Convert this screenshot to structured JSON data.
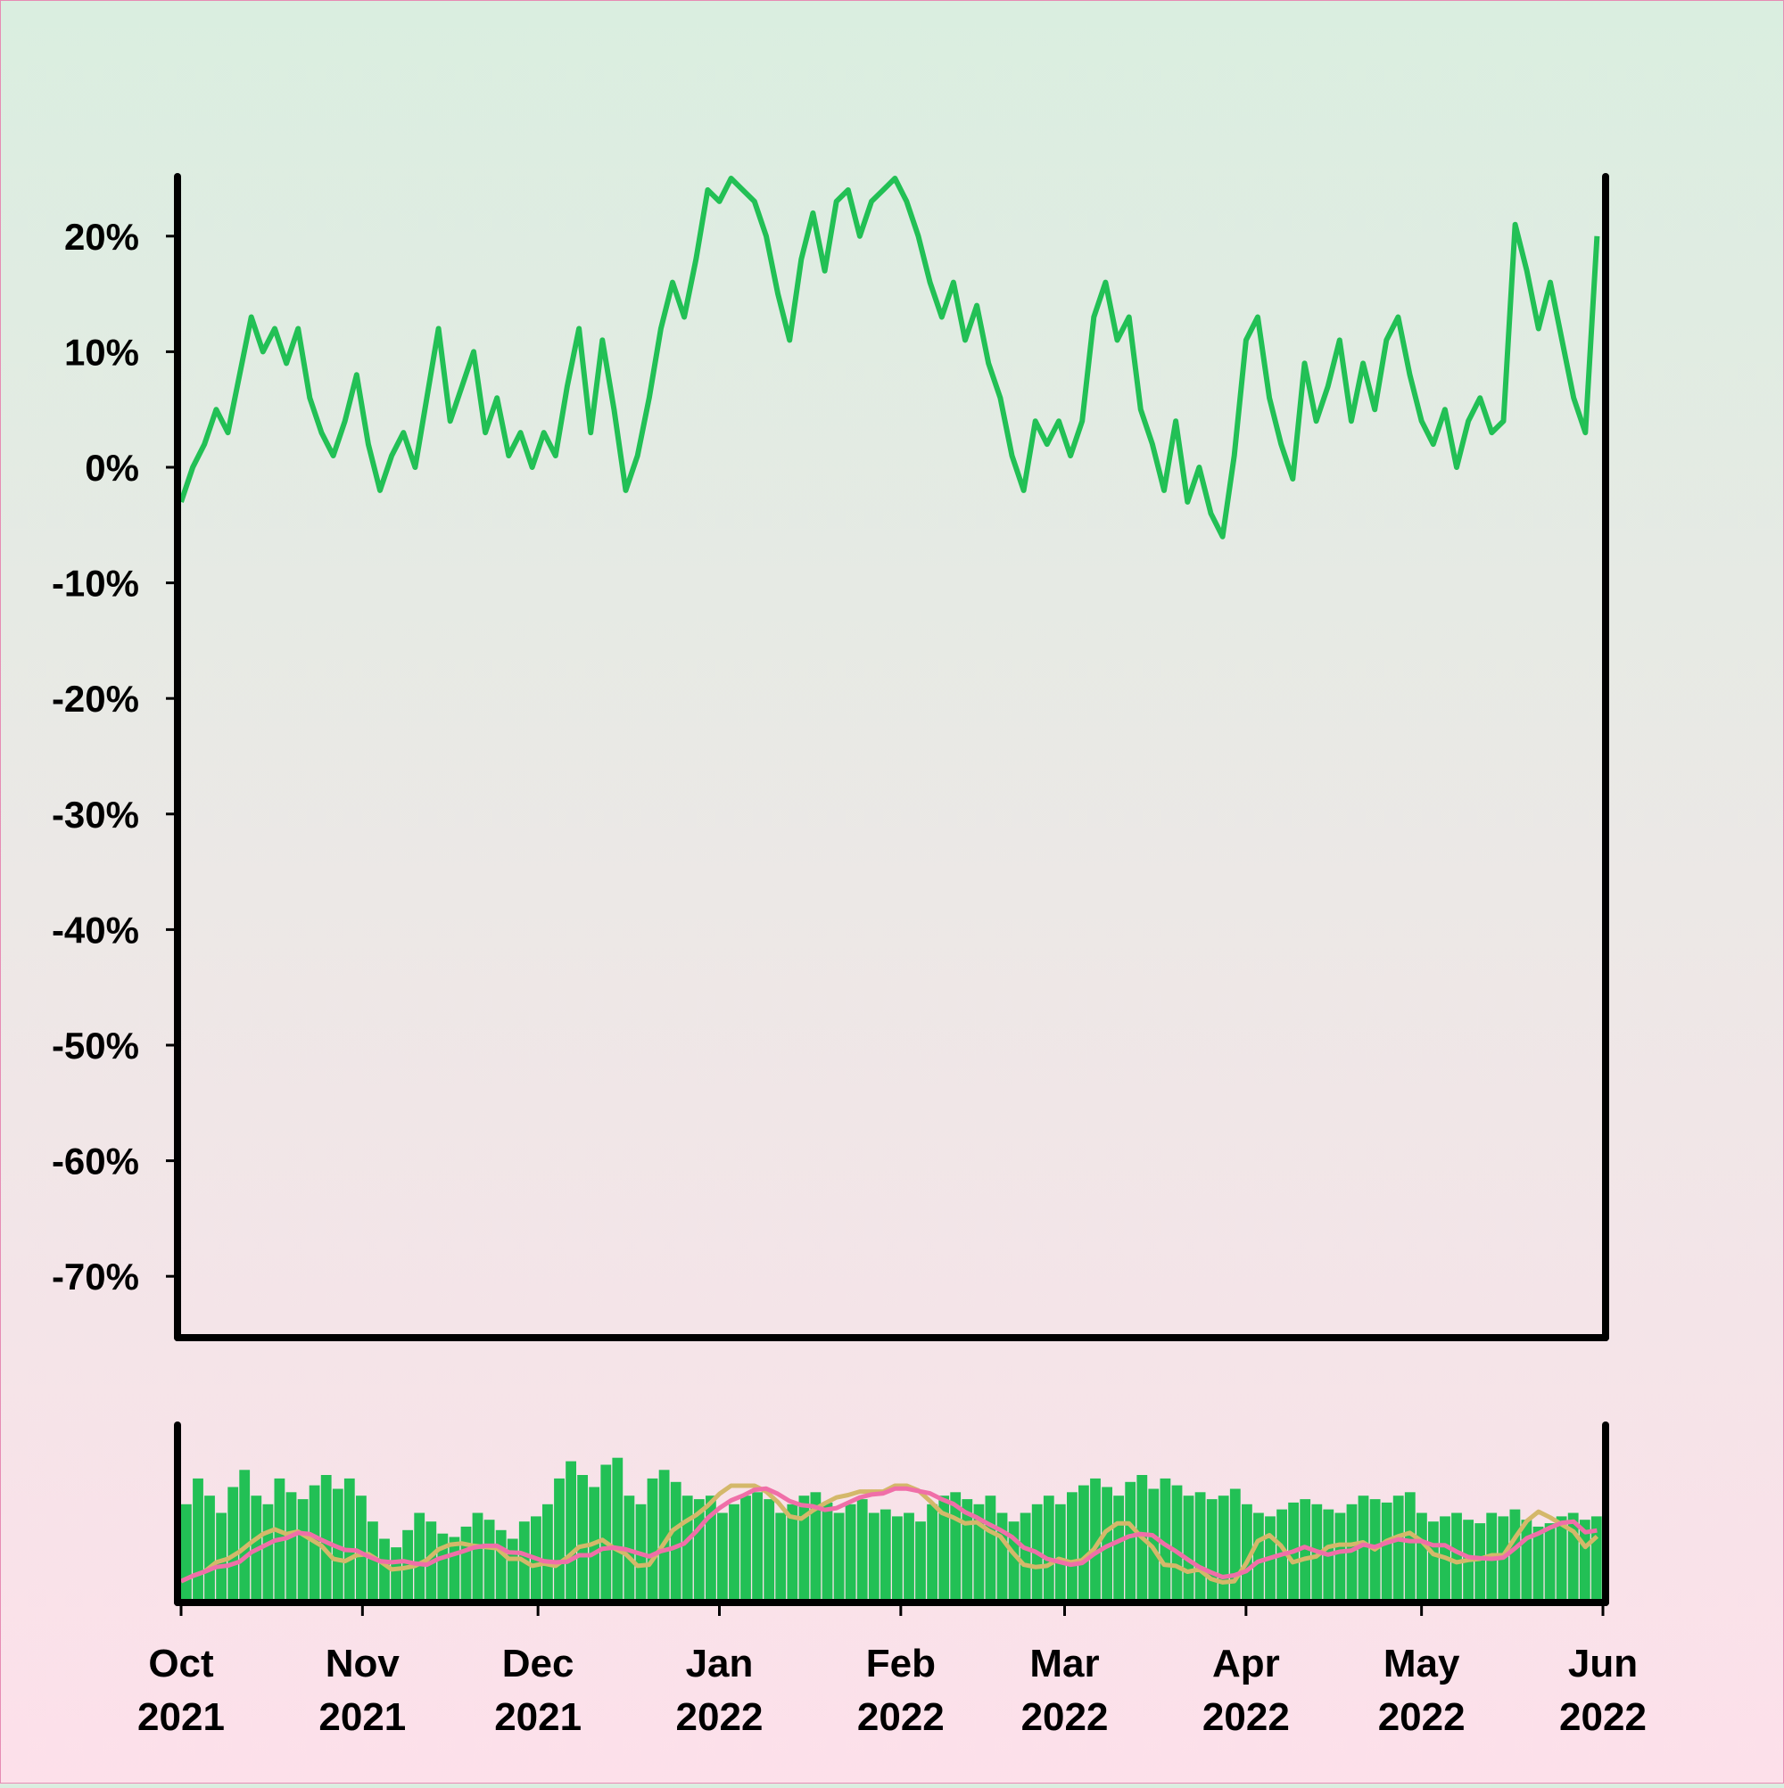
{
  "chart_data": [
    {
      "type": "line",
      "panel": "main",
      "title": "",
      "xlabel": "",
      "ylabel": "",
      "y_unit": "%",
      "ylim": [
        -75,
        25
      ],
      "xlim": [
        "2021-10-01",
        "2022-06-01"
      ],
      "y_ticks": [
        20,
        10,
        0,
        -10,
        -20,
        -30,
        -40,
        -50,
        -60,
        -70
      ],
      "y_tick_labels": [
        "20%",
        "10%",
        "0%",
        "-10%",
        "-20%",
        "-30%",
        "-40%",
        "-50%",
        "-60%",
        "-70%"
      ],
      "grid": false,
      "legend": "none",
      "line_color": "#22c055",
      "series": [
        {
          "x": [
            "2021-10-01",
            "2021-10-03",
            "2021-10-05",
            "2021-10-07",
            "2021-10-09",
            "2021-10-11",
            "2021-10-13",
            "2021-10-15",
            "2021-10-17",
            "2021-10-19",
            "2021-10-21",
            "2021-10-23",
            "2021-10-25",
            "2021-10-27",
            "2021-10-29",
            "2021-10-31",
            "2021-11-02",
            "2021-11-04",
            "2021-11-06",
            "2021-11-08",
            "2021-11-10",
            "2021-11-12",
            "2021-11-14",
            "2021-11-16",
            "2021-11-18",
            "2021-11-20",
            "2021-11-22",
            "2021-11-24",
            "2021-11-26",
            "2021-11-28",
            "2021-11-30",
            "2021-12-02",
            "2021-12-04",
            "2021-12-06",
            "2021-12-08",
            "2021-12-10",
            "2021-12-12",
            "2021-12-14",
            "2021-12-16",
            "2021-12-18",
            "2021-12-20",
            "2021-12-22",
            "2021-12-24",
            "2021-12-26",
            "2021-12-28",
            "2021-12-30",
            "2022-01-01",
            "2022-01-03",
            "2022-01-05",
            "2022-01-07",
            "2022-01-09",
            "2022-01-11",
            "2022-01-13",
            "2022-01-15",
            "2022-01-17",
            "2022-01-19",
            "2022-01-21",
            "2022-01-23",
            "2022-01-25",
            "2022-01-27",
            "2022-01-29",
            "2022-01-31",
            "2022-02-02",
            "2022-02-04",
            "2022-02-06",
            "2022-02-08",
            "2022-02-10",
            "2022-02-12",
            "2022-02-14",
            "2022-02-16",
            "2022-02-18",
            "2022-02-20",
            "2022-02-22",
            "2022-02-24",
            "2022-02-26",
            "2022-02-28",
            "2022-03-02",
            "2022-03-04",
            "2022-03-06",
            "2022-03-08",
            "2022-03-10",
            "2022-03-12",
            "2022-03-14",
            "2022-03-16",
            "2022-03-18",
            "2022-03-20",
            "2022-03-22",
            "2022-03-24",
            "2022-03-26",
            "2022-03-28",
            "2022-03-30",
            "2022-04-01",
            "2022-04-03",
            "2022-04-05",
            "2022-04-07",
            "2022-04-09",
            "2022-04-11",
            "2022-04-13",
            "2022-04-15",
            "2022-04-17",
            "2022-04-19",
            "2022-04-21",
            "2022-04-23",
            "2022-04-25",
            "2022-04-27",
            "2022-04-29",
            "2022-05-01",
            "2022-05-03",
            "2022-05-05",
            "2022-05-07",
            "2022-05-09",
            "2022-05-11",
            "2022-05-13",
            "2022-05-15",
            "2022-05-17",
            "2022-05-19",
            "2022-05-21",
            "2022-05-23",
            "2022-05-25",
            "2022-05-27",
            "2022-05-29",
            "2022-05-31"
          ],
          "y": [
            -3,
            0,
            2,
            5,
            3,
            8,
            13,
            10,
            12,
            9,
            12,
            6,
            3,
            1,
            4,
            8,
            2,
            -2,
            1,
            3,
            0,
            6,
            12,
            4,
            7,
            10,
            3,
            6,
            1,
            3,
            0,
            3,
            1,
            7,
            12,
            3,
            11,
            5,
            -2,
            1,
            6,
            12,
            16,
            13,
            18,
            24,
            23,
            25,
            24,
            23,
            20,
            15,
            11,
            18,
            22,
            17,
            23,
            24,
            20,
            23,
            24,
            25,
            23,
            20,
            16,
            13,
            16,
            11,
            14,
            9,
            6,
            1,
            -2,
            4,
            2,
            4,
            1,
            4,
            13,
            16,
            11,
            13,
            5,
            2,
            -2,
            4,
            -3,
            0,
            -4,
            -6,
            1,
            11,
            13,
            6,
            2,
            -1,
            9,
            4,
            7,
            11,
            4,
            9,
            5,
            11,
            13,
            8,
            4,
            2,
            5,
            0,
            4,
            6,
            3,
            4,
            21,
            17,
            12,
            16,
            11,
            6,
            3,
            20
          ]
        }
      ]
    },
    {
      "type": "bar",
      "panel": "volume",
      "title": "",
      "xlabel": "",
      "ylabel": "",
      "bar_color": "#22c055",
      "moving_average_colors": [
        "#d4b86a",
        "#f06fa8"
      ],
      "x_ticks": [
        "2021-10-01",
        "2021-11-01",
        "2021-12-01",
        "2022-01-01",
        "2022-02-01",
        "2022-03-01",
        "2022-04-01",
        "2022-05-01",
        "2022-06-01"
      ],
      "x_tick_labels": [
        [
          "Oct",
          "2021"
        ],
        [
          "Nov",
          "2021"
        ],
        [
          "Dec",
          "2021"
        ],
        [
          "Jan",
          "2022"
        ],
        [
          "Feb",
          "2022"
        ],
        [
          "Mar",
          "2022"
        ],
        [
          "Apr",
          "2022"
        ],
        [
          "May",
          "2022"
        ],
        [
          "Jun",
          "2022"
        ]
      ],
      "volume_level": [
        0.55,
        0.7,
        0.6,
        0.5,
        0.65,
        0.75,
        0.6,
        0.55,
        0.7,
        0.62,
        0.58,
        0.66,
        0.72,
        0.64,
        0.7,
        0.6,
        0.45,
        0.35,
        0.3,
        0.4,
        0.5,
        0.45,
        0.38,
        0.36,
        0.42,
        0.5,
        0.46,
        0.4,
        0.35,
        0.45,
        0.48,
        0.55,
        0.7,
        0.8,
        0.72,
        0.65,
        0.78,
        0.82,
        0.6,
        0.55,
        0.7,
        0.75,
        0.68,
        0.6,
        0.58,
        0.6,
        0.5,
        0.55,
        0.6,
        0.62,
        0.58,
        0.5,
        0.55,
        0.6,
        0.62,
        0.56,
        0.5,
        0.55,
        0.58,
        0.5,
        0.52,
        0.48,
        0.5,
        0.45,
        0.55,
        0.6,
        0.62,
        0.58,
        0.55,
        0.6,
        0.5,
        0.45,
        0.5,
        0.55,
        0.6,
        0.55,
        0.62,
        0.66,
        0.7,
        0.65,
        0.6,
        0.68,
        0.72,
        0.64,
        0.7,
        0.66,
        0.6,
        0.62,
        0.58,
        0.6,
        0.64,
        0.55,
        0.5,
        0.48,
        0.52,
        0.56,
        0.58,
        0.55,
        0.52,
        0.5,
        0.55,
        0.6,
        0.58,
        0.56,
        0.6,
        0.62,
        0.5,
        0.45,
        0.48,
        0.5,
        0.46,
        0.44,
        0.5,
        0.48,
        0.52,
        0.46,
        0.42,
        0.44,
        0.48,
        0.5,
        0.46,
        0.48
      ]
    }
  ]
}
